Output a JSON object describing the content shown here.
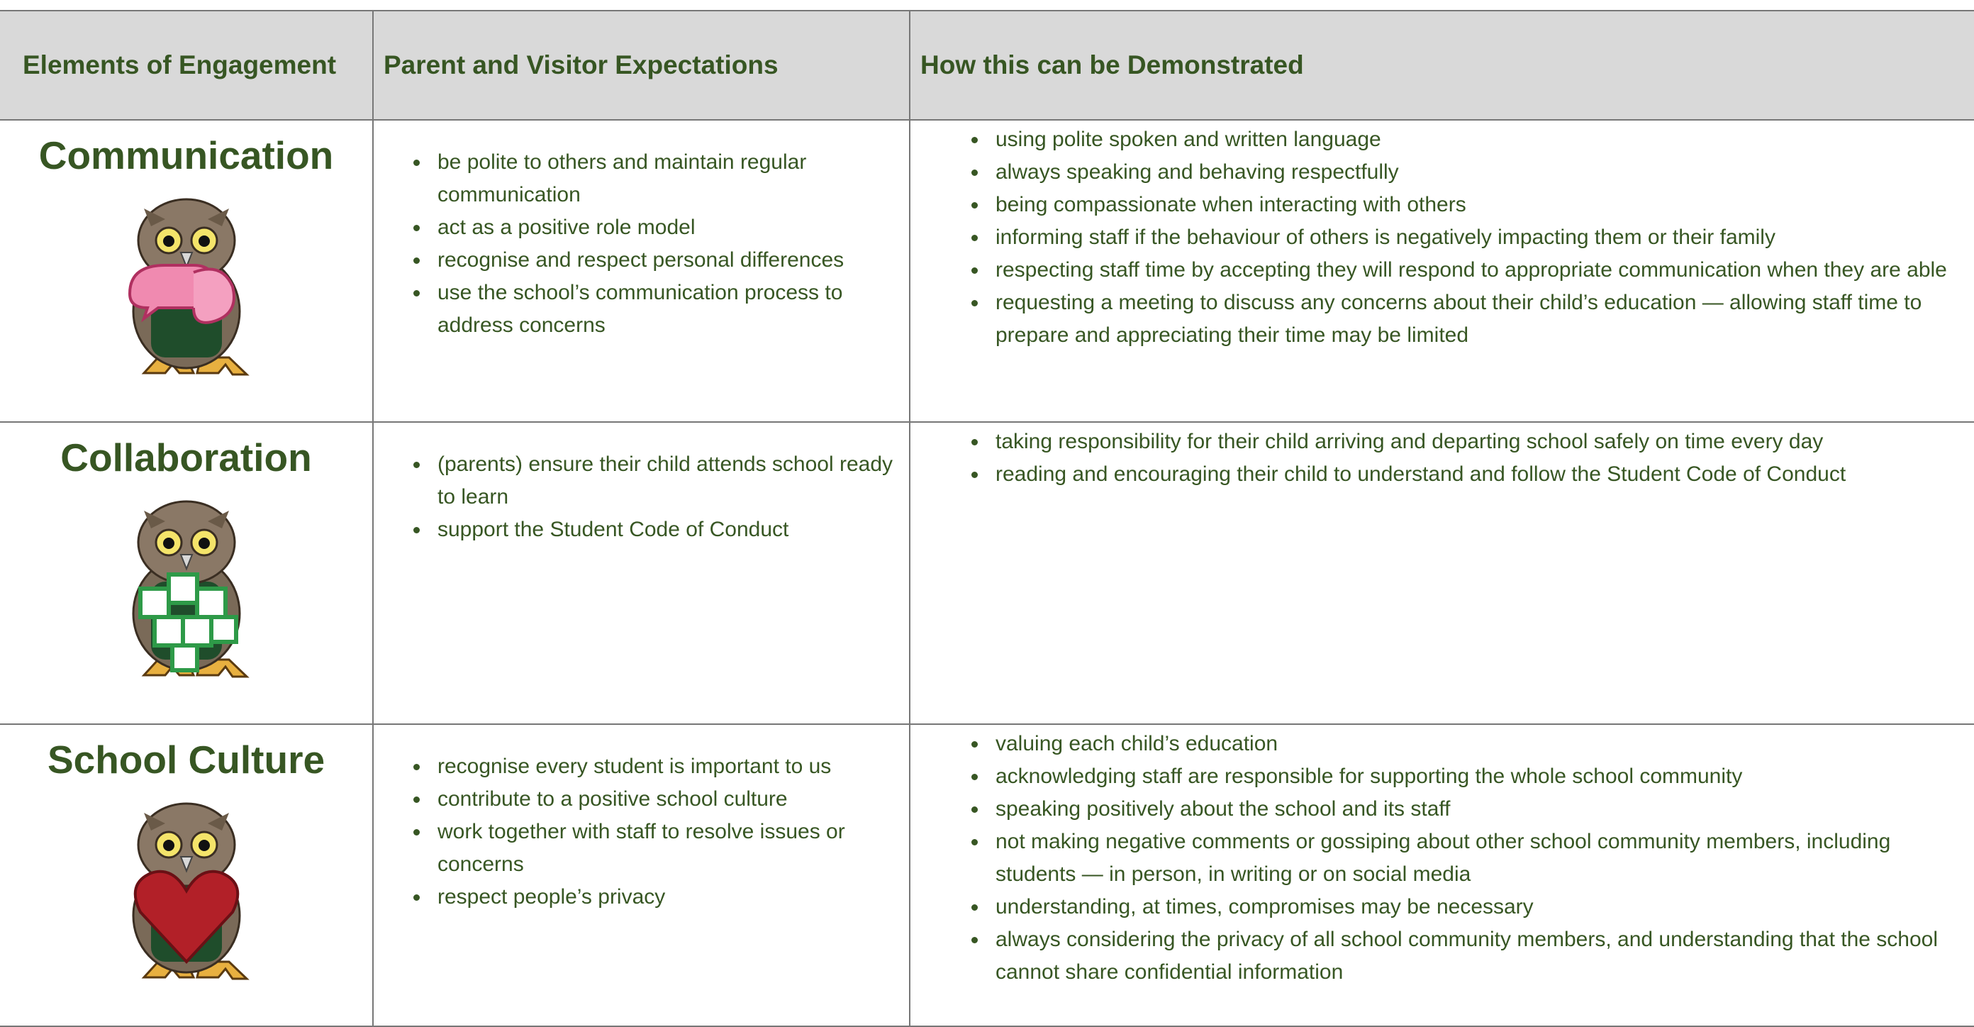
{
  "header": {
    "columns": [
      "Elements of Engagement",
      "Parent and Visitor Expectations",
      "How this can be Demonstrated"
    ]
  },
  "rows": [
    {
      "element": "Communication",
      "expectations": [
        "be polite to others and maintain regular communication",
        "act as a positive role model",
        "recognise and respect personal differences",
        "use the school’s communication process to address concerns"
      ],
      "demonstrated": [
        "using polite spoken and written language",
        "always speaking and behaving respectfully",
        "being compassionate when interacting with others",
        "informing staff if the behaviour of others is negatively impacting them or their family",
        "respecting staff time by accepting they will respond to appropriate communication when they are able",
        "requesting a meeting to discuss any concerns about their child’s education — allowing staff time to prepare and appreciating their time may be limited"
      ]
    },
    {
      "element": "Collaboration",
      "expectations": [
        "(parents) ensure their child attends school ready to learn",
        "support the Student Code of Conduct"
      ],
      "demonstrated": [
        "taking responsibility for their child arriving and departing school safely on time every day",
        "reading and encouraging their child to understand and follow the Student Code of Conduct"
      ]
    },
    {
      "element": "School Culture",
      "expectations": [
        "recognise every student is important to us",
        "contribute to a positive school culture",
        "work together with staff to resolve issues or concerns",
        "respect people’s privacy"
      ],
      "demonstrated": [
        "valuing each child’s education",
        "acknowledging staff are responsible for supporting the whole school community",
        "speaking positively about the school and its staff",
        "not making negative comments or gossiping about other school community members, including students — in person, in writing or on social media",
        "understanding, at times, compromises may be necessary",
        "always considering the privacy of all school community members, and understanding that the school cannot share confidential information"
      ]
    }
  ]
}
